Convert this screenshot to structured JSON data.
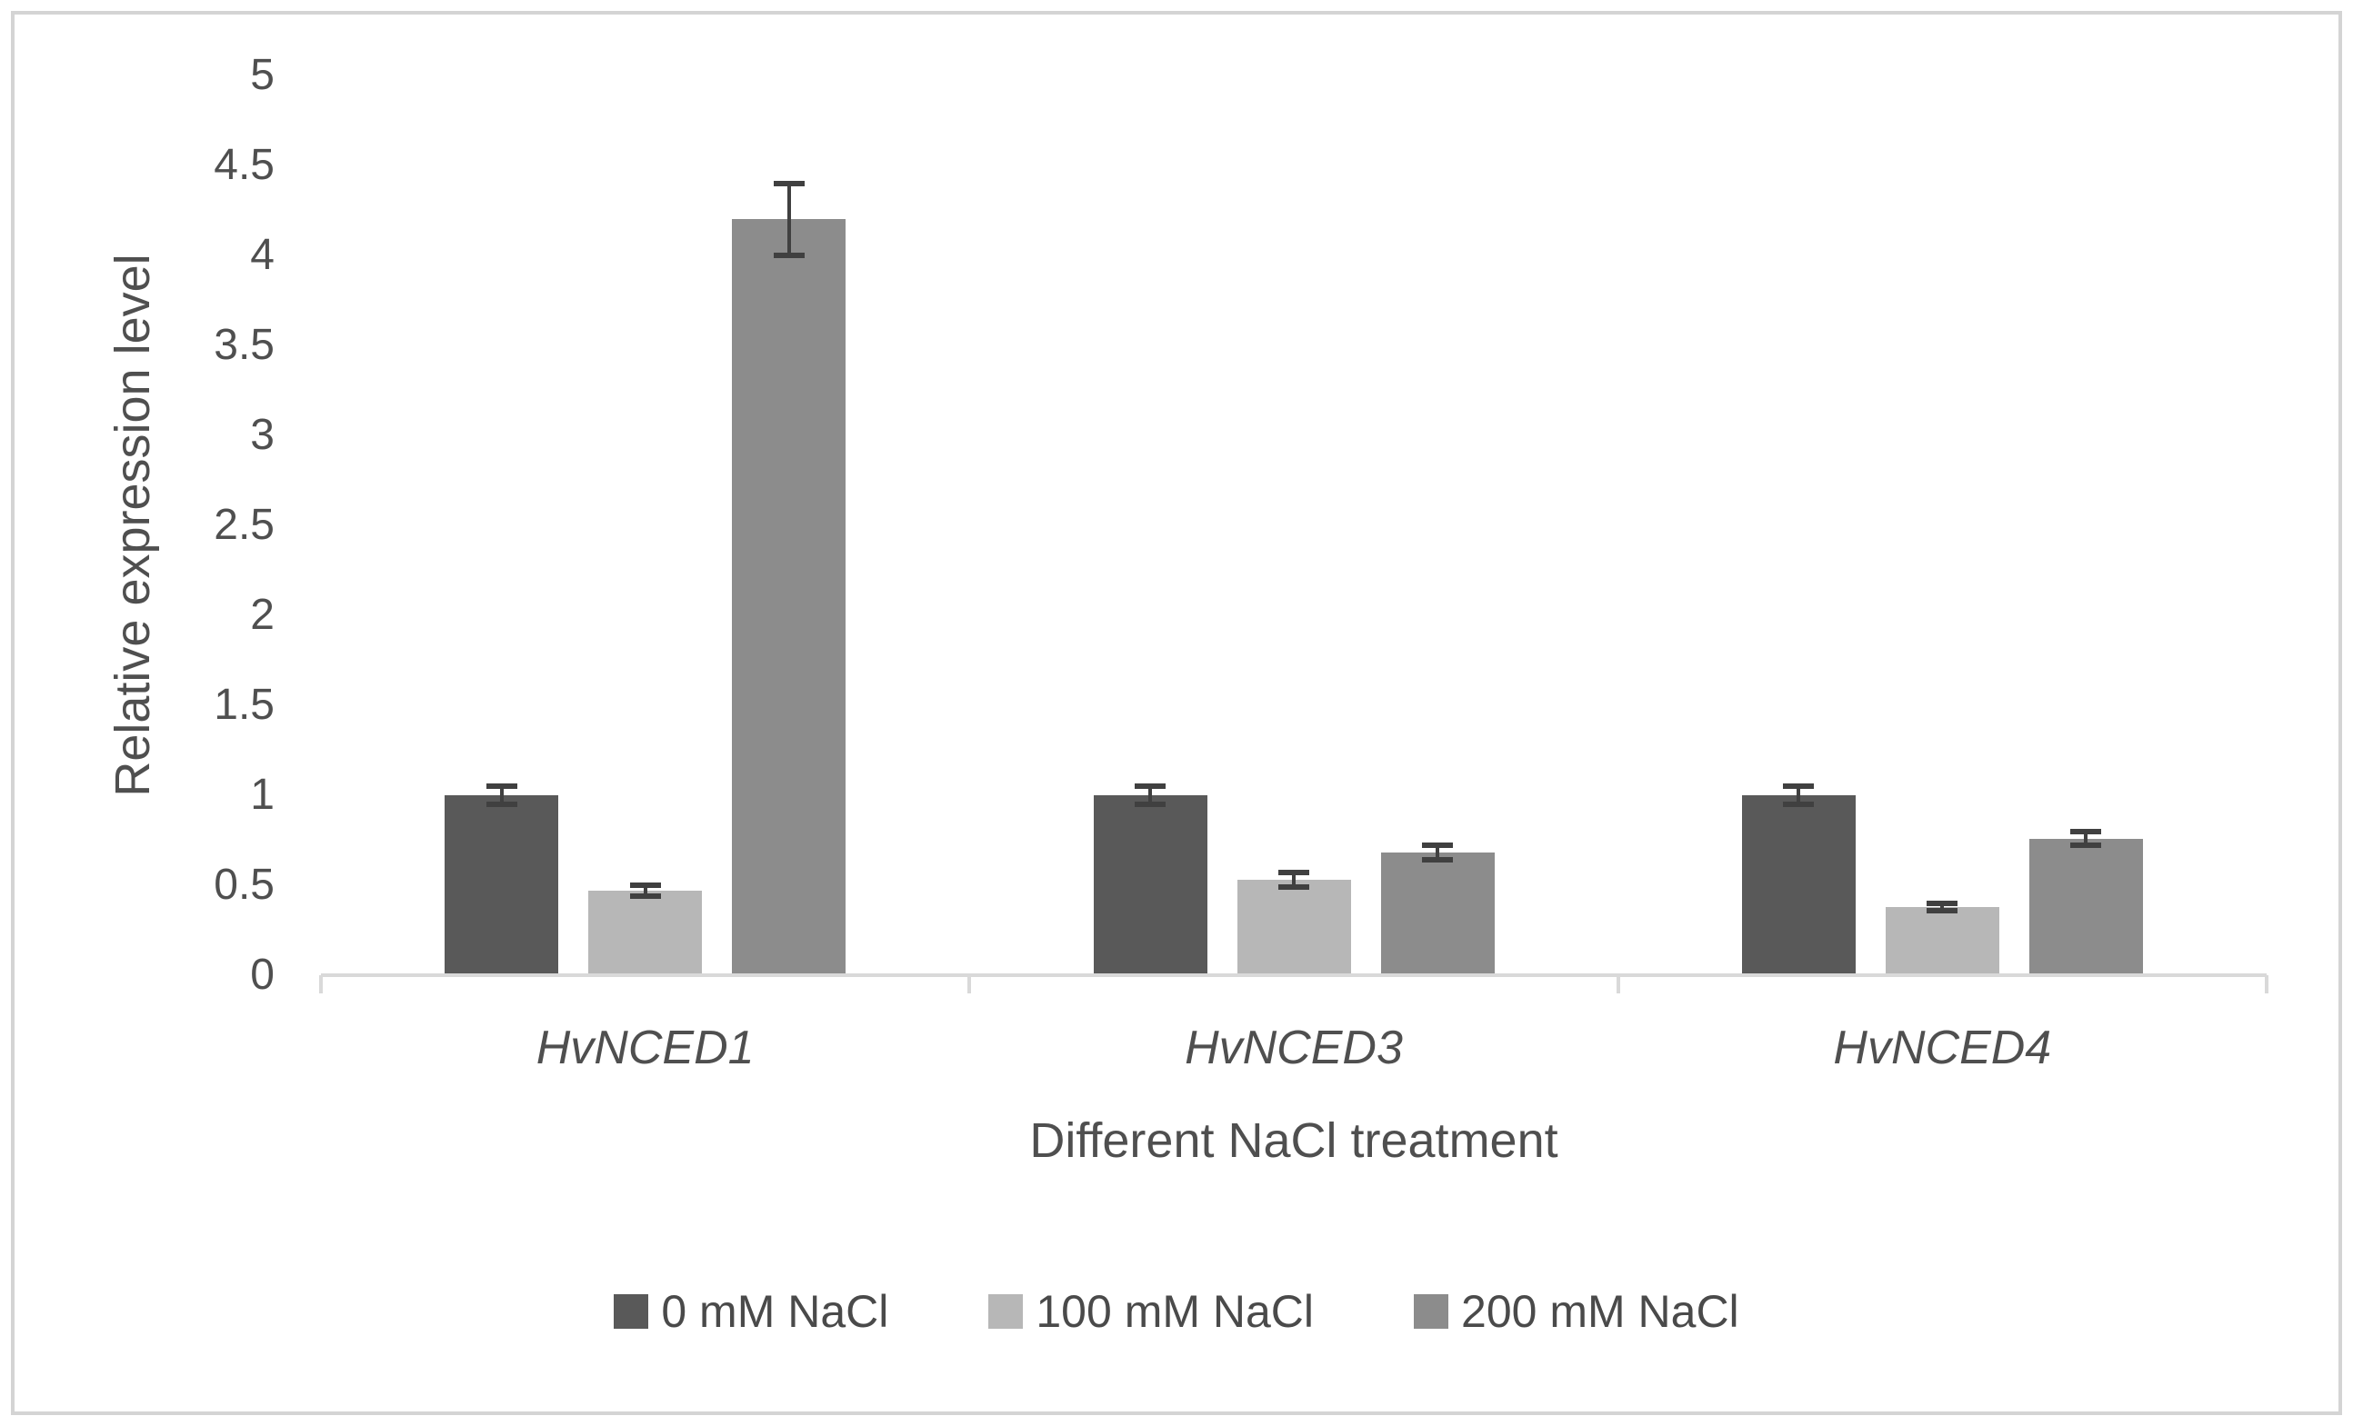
{
  "chart_data": {
    "type": "bar",
    "title": "",
    "xlabel": "Different NaCl treatment",
    "ylabel": "Relative expression level",
    "categories": [
      "HvNCED1",
      "HvNCED3",
      "HvNCED4"
    ],
    "series": [
      {
        "name": "0 mM NaCl",
        "color": "#595959",
        "values": [
          1.0,
          1.0,
          1.0
        ],
        "errors": [
          0.05,
          0.05,
          0.05
        ]
      },
      {
        "name": "100 mM NaCl",
        "color": "#b7b7b7",
        "values": [
          0.47,
          0.53,
          0.38
        ],
        "errors": [
          0.03,
          0.04,
          0.02
        ]
      },
      {
        "name": "200 mM NaCl",
        "color": "#8c8c8c",
        "values": [
          4.2,
          0.68,
          0.76
        ],
        "errors": [
          0.2,
          0.04,
          0.04
        ]
      }
    ],
    "ylim": [
      0,
      5
    ],
    "ytick_step": 0.5,
    "ytick_labels": [
      "0",
      "0.5",
      "1",
      "1.5",
      "2",
      "2.5",
      "3",
      "3.5",
      "4",
      "4.5",
      "5"
    ],
    "legend_position": "bottom",
    "grid": false,
    "colors": {
      "error_bar": "#404040",
      "axis_line": "#d9d9d9",
      "text": "#4f4f4f",
      "frame_border": "#d4d4d4",
      "background": "#ffffff"
    }
  }
}
